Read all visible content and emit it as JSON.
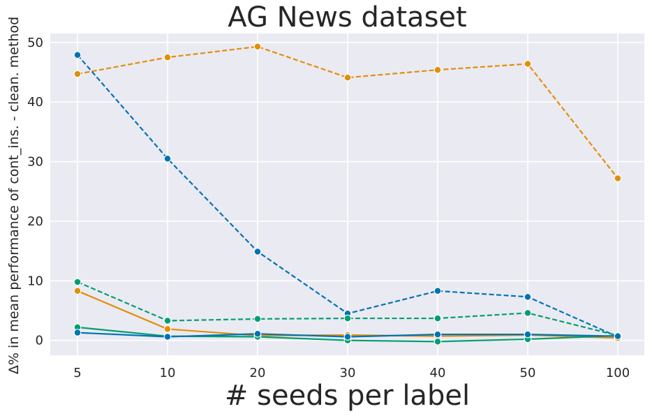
{
  "chart_data": {
    "type": "line",
    "title": "AG News dataset",
    "xlabel": "# seeds per label",
    "ylabel": "Δ% in mean performance of cont_ins. - clean. method",
    "categories": [
      "5",
      "10",
      "20",
      "30",
      "40",
      "50",
      "100"
    ],
    "ylim": [
      -2.5,
      51.5
    ],
    "yticks": [
      0,
      10,
      20,
      30,
      40,
      50
    ],
    "grid": true,
    "legend": "none",
    "series": [
      {
        "color": "#e08f0b",
        "style": "dashed",
        "values": [
          44.7,
          47.5,
          49.3,
          44.1,
          45.4,
          46.4,
          27.2
        ]
      },
      {
        "color": "#0173b2",
        "style": "dashed",
        "values": [
          47.9,
          30.5,
          14.9,
          4.5,
          8.3,
          7.3,
          0.6
        ]
      },
      {
        "color": "#029e73",
        "style": "dashed",
        "values": [
          9.8,
          3.3,
          3.6,
          3.7,
          3.7,
          4.6,
          0.8
        ]
      },
      {
        "color": "#e08f0b",
        "style": "solid",
        "values": [
          8.3,
          1.9,
          0.8,
          0.9,
          0.7,
          0.9,
          0.4
        ]
      },
      {
        "color": "#029e73",
        "style": "solid",
        "values": [
          2.2,
          0.7,
          0.6,
          0.0,
          -0.2,
          0.2,
          0.8
        ]
      },
      {
        "color": "#0173b2",
        "style": "solid",
        "values": [
          1.3,
          0.6,
          1.1,
          0.6,
          1.0,
          1.0,
          0.7
        ]
      }
    ]
  }
}
